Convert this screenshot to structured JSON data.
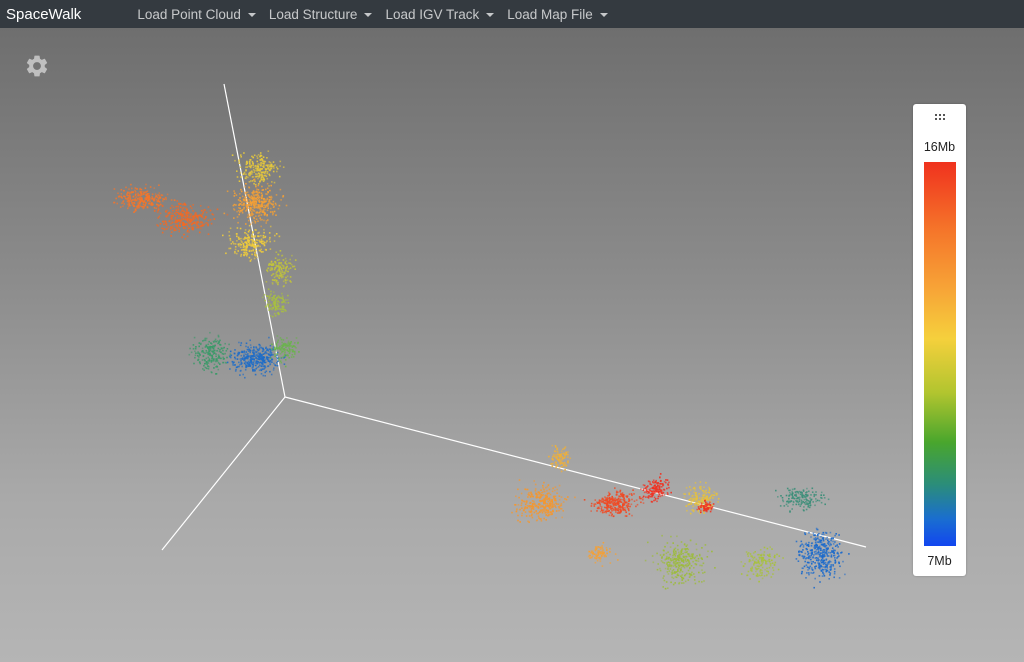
{
  "app": {
    "brand": "SpaceWalk"
  },
  "menu": {
    "items": [
      {
        "label": "Load Point Cloud"
      },
      {
        "label": "Load Structure"
      },
      {
        "label": "Load IGV Track"
      },
      {
        "label": "Load Map File"
      }
    ]
  },
  "icons": {
    "settings": "gear-icon",
    "legend_handle": "drag-handle-icon"
  },
  "legend": {
    "max_label": "16Mb",
    "min_label": "7Mb",
    "colors": [
      "#f0321e",
      "#f5762a",
      "#f7a437",
      "#f5d03c",
      "#b2c52f",
      "#49a62d",
      "#2b8d7a",
      "#1a6ed0",
      "#1246f0"
    ]
  },
  "colors": {
    "navbar": "#343a40",
    "axis": "#ffffff"
  }
}
